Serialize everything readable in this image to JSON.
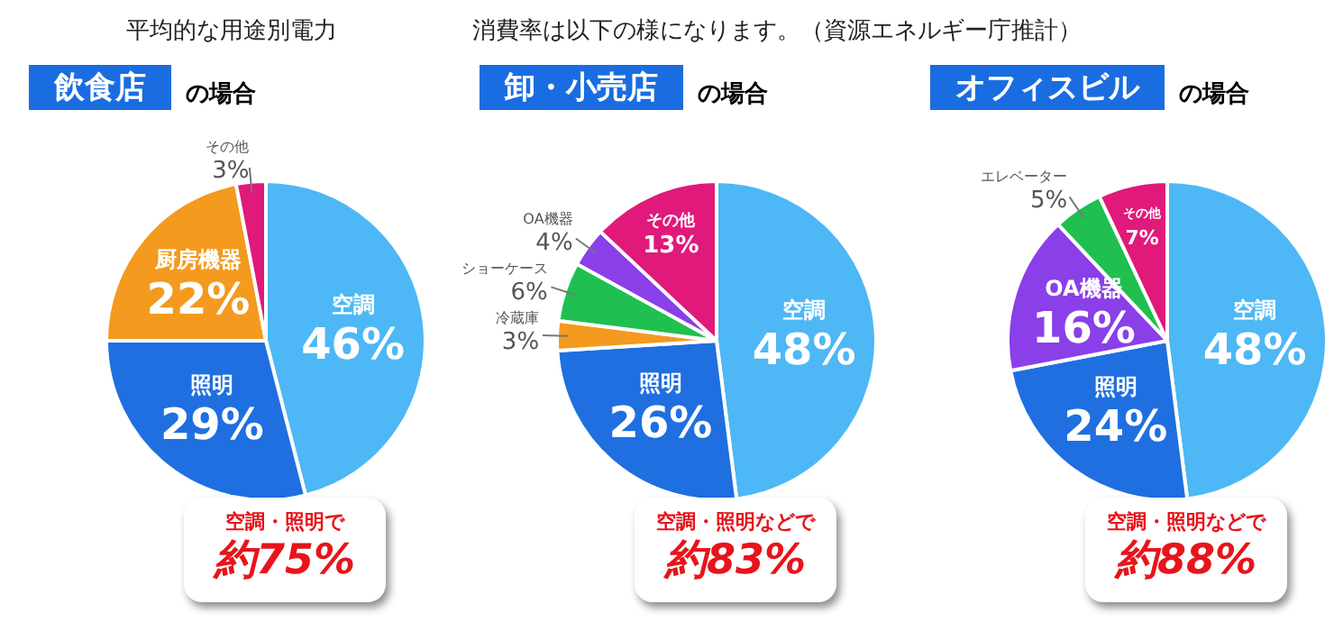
{
  "chart_data": [
    {
      "type": "pie",
      "title": "平均的な用途別電力",
      "subtitle": "飲食店",
      "categories": [
        "空調",
        "照明",
        "厨房機器",
        "その他"
      ],
      "values": [
        46,
        29,
        22,
        3
      ],
      "colors": [
        "#4db8f5",
        "#1f6fe0",
        "#f39a1f",
        "#e0197a"
      ],
      "value_labels": [
        "46%",
        "29%",
        "22%",
        "3%"
      ],
      "annotations": [
        "の場合",
        "空調・照明で",
        "約75%"
      ]
    },
    {
      "type": "pie",
      "title": "消費率は以下の様になります。（資源エネルギー庁推計）",
      "subtitle": "卸・小売店",
      "categories": [
        "空調",
        "照明",
        "冷蔵庫",
        "ショーケース",
        "OA機器",
        "その他"
      ],
      "values": [
        48,
        26,
        3,
        6,
        4,
        13
      ],
      "colors": [
        "#4db8f5",
        "#1f6fe0",
        "#f39a1f",
        "#1fbf50",
        "#8a3fe8",
        "#e0197a"
      ],
      "value_labels": [
        "48%",
        "26%",
        "3%",
        "6%",
        "4%",
        "13%"
      ],
      "annotations": [
        "の場合",
        "空調・照明などで",
        "約83%"
      ]
    },
    {
      "type": "pie",
      "subtitle": "オフィスビル",
      "categories": [
        "空調",
        "照明",
        "OA機器",
        "エレベーター",
        "その他"
      ],
      "values": [
        48,
        24,
        16,
        5,
        7
      ],
      "colors": [
        "#4db8f5",
        "#1f6fe0",
        "#8a3fe8",
        "#1fbf50",
        "#e0197a"
      ],
      "value_labels": [
        "48%",
        "24%",
        "16%",
        "5%",
        "7%"
      ],
      "annotations": [
        "の場合",
        "空調・照明などで",
        "約88%"
      ]
    }
  ]
}
